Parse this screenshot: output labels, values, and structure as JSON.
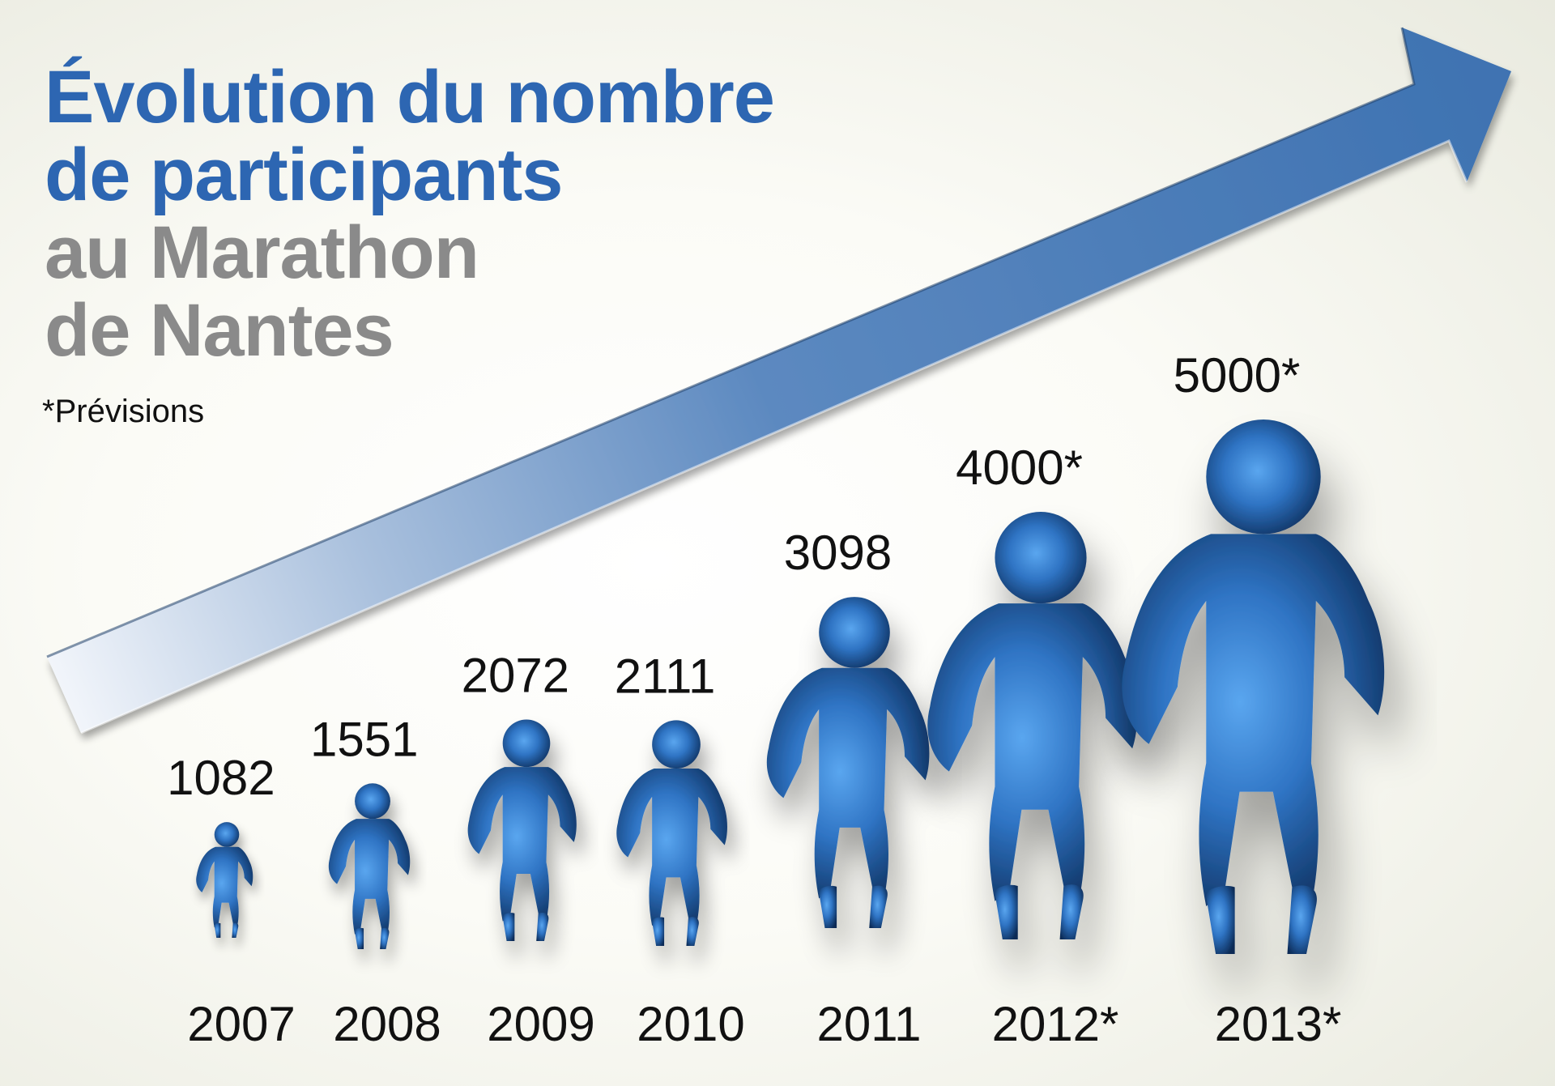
{
  "title": {
    "line1": "Évolution du nombre",
    "line2": "de participants",
    "line3": "au Marathon",
    "line4": "de Nantes"
  },
  "footnote": "*Prévisions",
  "colors": {
    "title_blue": "#2d66b2",
    "title_grey": "#8a8a8a",
    "runner_light": "#4f9ae6",
    "runner_dark": "#0b2a55",
    "arrow_light": "#f3f6fb",
    "arrow_dark": "#3f73b2"
  },
  "chart_data": {
    "type": "bar",
    "mark": "runner-silhouette",
    "categories": [
      "2007",
      "2008",
      "2009",
      "2010",
      "2011",
      "2012*",
      "2013*"
    ],
    "values": [
      1082,
      1551,
      2072,
      2111,
      3098,
      4000,
      5000
    ],
    "value_labels": [
      "1082",
      "1551",
      "2072",
      "2111",
      "3098",
      "4000*",
      "5000*"
    ],
    "forecast": [
      false,
      false,
      false,
      false,
      false,
      true,
      true
    ],
    "title": "Évolution du nombre de participants au Marathon de Nantes",
    "xlabel": "",
    "ylabel": "",
    "grid": false,
    "legend": "none",
    "trend_arrow": "up-right"
  }
}
